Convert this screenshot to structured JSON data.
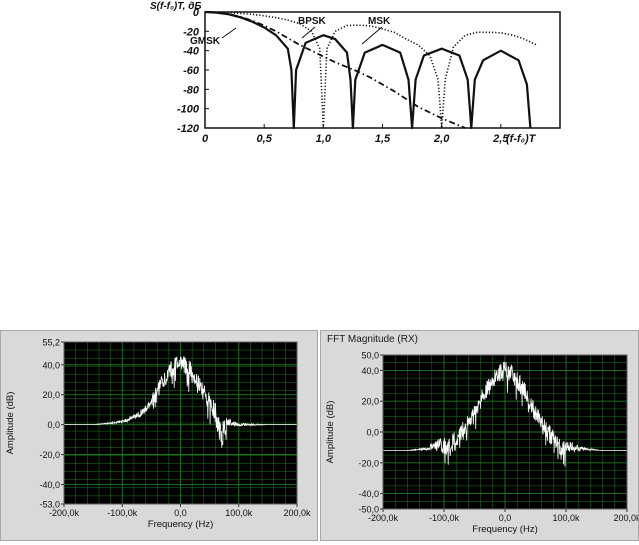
{
  "chart_data": [
    {
      "type": "line",
      "ylabel": "S(f-f₀)T, дБ",
      "xlabel": "(f-f₀)T",
      "xlim": [
        0,
        3.0
      ],
      "ylim": [
        -120,
        0
      ],
      "xticks": [
        "0",
        "0,5",
        "1,0",
        "1,5",
        "2,0",
        "2,5"
      ],
      "yticks": [
        "0",
        "-20",
        "-40",
        "-60",
        "-80",
        "-100",
        "-120"
      ],
      "grid": false,
      "annotations": [
        "BPSK",
        "MSK",
        "GMSK"
      ],
      "series": [
        {
          "name": "BPSK",
          "style": "dotted",
          "x": [
            0,
            0.1,
            0.2,
            0.3,
            0.4,
            0.5,
            0.6,
            0.7,
            0.8,
            0.9,
            0.97,
            1.0,
            1.03,
            1.1,
            1.2,
            1.3,
            1.4,
            1.5,
            1.6,
            1.7,
            1.8,
            1.9,
            1.97,
            2.0,
            2.03,
            2.1,
            2.2,
            2.3,
            2.4,
            2.5,
            2.6,
            2.7,
            2.8
          ],
          "y": [
            0,
            -0.1,
            -0.6,
            -1.4,
            -2.4,
            -3.9,
            -5.8,
            -8.4,
            -12,
            -20,
            -38,
            -120,
            -38,
            -20,
            -14,
            -13.5,
            -14.5,
            -17.5,
            -21,
            -28,
            -34,
            -45,
            -70,
            -120,
            -70,
            -36,
            -24,
            -21,
            -21,
            -21.5,
            -24,
            -28,
            -34
          ]
        },
        {
          "name": "MSK",
          "style": "solid",
          "x": [
            0,
            0.1,
            0.2,
            0.3,
            0.4,
            0.5,
            0.6,
            0.7,
            0.73,
            0.75,
            0.77,
            0.85,
            1.0,
            1.1,
            1.2,
            1.23,
            1.25,
            1.27,
            1.35,
            1.5,
            1.65,
            1.72,
            1.75,
            1.78,
            1.85,
            2.0,
            2.15,
            2.22,
            2.25,
            2.28,
            2.35,
            2.5,
            2.65,
            2.72,
            2.75
          ],
          "y": [
            0,
            -0.6,
            -2.4,
            -5.5,
            -10,
            -16,
            -24,
            -38,
            -60,
            -120,
            -60,
            -32,
            -24,
            -28,
            -42,
            -70,
            -120,
            -70,
            -42,
            -34,
            -42,
            -70,
            -120,
            -70,
            -45,
            -38,
            -45,
            -70,
            -120,
            -70,
            -50,
            -40,
            -50,
            -75,
            -120
          ]
        },
        {
          "name": "GMSK",
          "style": "dashdot",
          "x": [
            0,
            0.1,
            0.2,
            0.3,
            0.4,
            0.5,
            0.6,
            0.7,
            0.8,
            0.9,
            1.0,
            1.1,
            1.2,
            1.3,
            1.4,
            1.5,
            1.6,
            1.7,
            1.8,
            1.9,
            2.0,
            2.1,
            2.2
          ],
          "y": [
            0,
            -0.5,
            -2,
            -5,
            -9,
            -14,
            -20,
            -27,
            -34,
            -40,
            -46,
            -52,
            -57,
            -62,
            -68,
            -75,
            -82,
            -90,
            -98,
            -104,
            -110,
            -115,
            -120
          ]
        }
      ]
    },
    {
      "type": "line",
      "ylabel": "Amplitude (dB)",
      "xlabel": "Frequency (Hz)",
      "xlim": [
        -200,
        200
      ],
      "ylim": [
        -53,
        55.2
      ],
      "xticks": [
        "-200,0k",
        "-100,0k",
        "0,0",
        "100,0k",
        "200,0k"
      ],
      "yticks": [
        "55,2",
        "40,0",
        "20,0",
        "0,0",
        "-20,0",
        "-40,0",
        "-53,0"
      ],
      "grid": true,
      "background": "#000000",
      "gridColor": "#1f7a1f",
      "series": [
        {
          "color": "#ffffff",
          "x": [
            -200,
            -150,
            -120,
            -100,
            -80,
            -60,
            -40,
            -20,
            0,
            20,
            40,
            60,
            70,
            80,
            100,
            150,
            200
          ],
          "y": [
            0,
            0,
            1,
            2,
            5,
            10,
            22,
            35,
            42,
            35,
            22,
            8,
            -8,
            2,
            0,
            0,
            0
          ],
          "noise": [
            0,
            0,
            0.5,
            1,
            2,
            3,
            5,
            6,
            6,
            6,
            5,
            8,
            10,
            3,
            1,
            0,
            0
          ]
        }
      ]
    },
    {
      "type": "line",
      "title": "FFT Magnitude (RX)",
      "ylabel": "Amplitude (dB)",
      "xlabel": "Frequency (Hz)",
      "xlim": [
        -200,
        200
      ],
      "ylim": [
        -50,
        50
      ],
      "xticks": [
        "-200,0k",
        "-100,0k",
        "0,0",
        "100,0k",
        "200,0k"
      ],
      "yticks": [
        "50,0",
        "40,0",
        "20,0",
        "0,0",
        "-20,0",
        "-40,0",
        "-50,0"
      ],
      "grid": true,
      "background": "#000000",
      "gridColor": "#1f7a1f",
      "series": [
        {
          "color": "#ffffff",
          "x": [
            -200,
            -160,
            -130,
            -110,
            -90,
            -70,
            -50,
            -30,
            -10,
            0,
            10,
            30,
            50,
            70,
            90,
            110,
            130,
            160,
            200
          ],
          "y": [
            -12,
            -12,
            -11,
            -8,
            -10,
            0,
            12,
            28,
            38,
            40,
            38,
            28,
            12,
            0,
            -10,
            -10,
            -11,
            -12,
            -12
          ],
          "noise": [
            0,
            0,
            1,
            4,
            7,
            6,
            6,
            6,
            6,
            6,
            6,
            6,
            6,
            6,
            6,
            3,
            1,
            0,
            0
          ]
        }
      ]
    }
  ]
}
